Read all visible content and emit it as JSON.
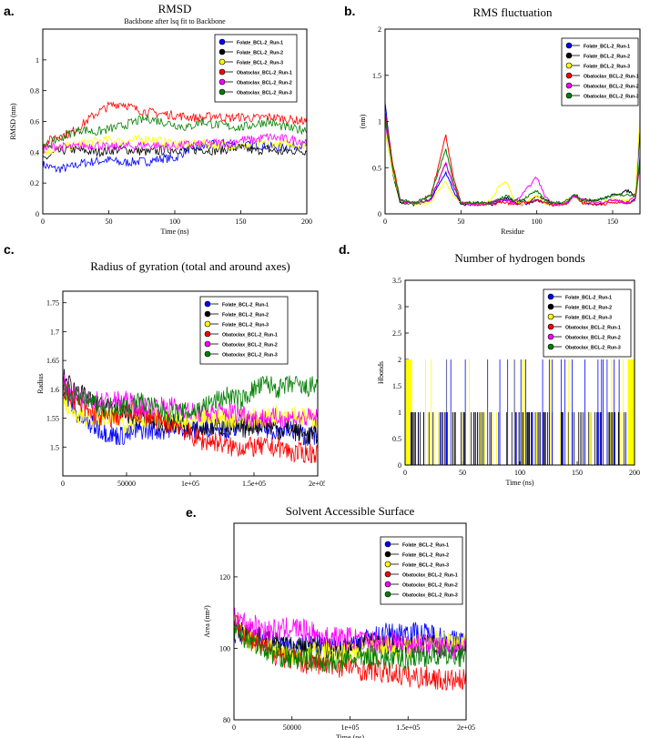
{
  "figure": {
    "panel_labels": [
      "a.",
      "b.",
      "c.",
      "d.",
      "e."
    ],
    "legend": [
      {
        "name": "Folate_BCL-2_Run-1",
        "color": "#0000ff"
      },
      {
        "name": "Folate_BCL-2_Run-2",
        "color": "#000000"
      },
      {
        "name": "Folate_BCL-2_Run-3",
        "color": "#ffff00"
      },
      {
        "name": "Obatoclax_BCL-2_Run-1",
        "color": "#ff0000"
      },
      {
        "name": "Obatoclax_BCL-2_Run-2",
        "color": "#ff00ff"
      },
      {
        "name": "Obatoclax_BCL-2_Run-3",
        "color": "#008000"
      }
    ]
  },
  "chart_data": [
    {
      "type": "line",
      "title": "RMSD",
      "subtitle": "Backbone after lsq fit to Backbone",
      "xlabel": "Time (ns)",
      "ylabel": "RMSD (nm)",
      "xlim": [
        0,
        200
      ],
      "ylim": [
        0,
        1.2
      ],
      "xticks": [
        "0",
        "50",
        "100",
        "150",
        "200"
      ],
      "yticks": [
        "0",
        "0.2",
        "0.4",
        "0.6",
        "0.8",
        "1"
      ],
      "x": [
        0,
        10,
        20,
        30,
        40,
        50,
        60,
        70,
        80,
        90,
        100,
        110,
        120,
        130,
        140,
        150,
        160,
        170,
        180,
        190,
        200
      ],
      "series": [
        {
          "name": "Folate_BCL-2_Run-1",
          "values": [
            0.32,
            0.29,
            0.3,
            0.33,
            0.34,
            0.35,
            0.33,
            0.34,
            0.34,
            0.36,
            0.36,
            0.42,
            0.43,
            0.45,
            0.46,
            0.44,
            0.45,
            0.44,
            0.43,
            0.44,
            0.45
          ]
        },
        {
          "name": "Folate_BCL-2_Run-2",
          "values": [
            0.35,
            0.4,
            0.42,
            0.41,
            0.4,
            0.41,
            0.42,
            0.41,
            0.4,
            0.41,
            0.42,
            0.41,
            0.42,
            0.41,
            0.42,
            0.43,
            0.41,
            0.42,
            0.4,
            0.41,
            0.41
          ]
        },
        {
          "name": "Folate_BCL-2_Run-3",
          "values": [
            0.4,
            0.42,
            0.44,
            0.46,
            0.47,
            0.48,
            0.47,
            0.48,
            0.49,
            0.47,
            0.46,
            0.45,
            0.46,
            0.45,
            0.45,
            0.44,
            0.45,
            0.46,
            0.45,
            0.45,
            0.45
          ]
        },
        {
          "name": "Obatoclax_BCL-2_Run-1",
          "values": [
            0.45,
            0.5,
            0.52,
            0.58,
            0.65,
            0.7,
            0.72,
            0.68,
            0.66,
            0.65,
            0.64,
            0.63,
            0.62,
            0.64,
            0.62,
            0.63,
            0.62,
            0.63,
            0.62,
            0.61,
            0.6
          ]
        },
        {
          "name": "Obatoclax_BCL-2_Run-2",
          "values": [
            0.42,
            0.44,
            0.43,
            0.44,
            0.45,
            0.43,
            0.44,
            0.44,
            0.45,
            0.44,
            0.44,
            0.45,
            0.45,
            0.46,
            0.46,
            0.48,
            0.48,
            0.5,
            0.49,
            0.48,
            0.47
          ]
        },
        {
          "name": "Obatoclax_BCL-2_Run-3",
          "values": [
            0.42,
            0.48,
            0.52,
            0.55,
            0.53,
            0.55,
            0.57,
            0.6,
            0.62,
            0.6,
            0.58,
            0.56,
            0.6,
            0.58,
            0.57,
            0.56,
            0.58,
            0.6,
            0.57,
            0.55,
            0.55
          ]
        }
      ],
      "legend_position": "top-right"
    },
    {
      "type": "line",
      "title": "RMS fluctuation",
      "xlabel": "Residue",
      "ylabel": "(nm)",
      "xlim": [
        0,
        168
      ],
      "ylim": [
        0,
        2
      ],
      "xticks": [
        "0",
        "50",
        "100",
        "150"
      ],
      "yticks": [
        "0",
        "0.5",
        "1",
        "1.5",
        "2"
      ],
      "x": [
        0,
        5,
        10,
        20,
        30,
        35,
        40,
        45,
        50,
        60,
        70,
        75,
        80,
        85,
        90,
        95,
        100,
        105,
        110,
        115,
        120,
        125,
        130,
        140,
        150,
        160,
        165,
        168
      ],
      "series": [
        {
          "name": "Folate_BCL-2_Run-1",
          "values": [
            1.2,
            0.5,
            0.15,
            0.1,
            0.15,
            0.3,
            0.45,
            0.25,
            0.1,
            0.1,
            0.1,
            0.12,
            0.15,
            0.12,
            0.1,
            0.12,
            0.15,
            0.12,
            0.1,
            0.1,
            0.12,
            0.2,
            0.12,
            0.1,
            0.15,
            0.12,
            0.15,
            0.9
          ]
        },
        {
          "name": "Folate_BCL-2_Run-2",
          "values": [
            1.1,
            0.45,
            0.12,
            0.1,
            0.15,
            0.35,
            0.55,
            0.3,
            0.1,
            0.12,
            0.12,
            0.15,
            0.18,
            0.12,
            0.15,
            0.12,
            0.2,
            0.15,
            0.12,
            0.1,
            0.12,
            0.22,
            0.15,
            0.15,
            0.2,
            0.25,
            0.2,
            1.0
          ]
        },
        {
          "name": "Folate_BCL-2_Run-3",
          "values": [
            0.9,
            0.45,
            0.15,
            0.1,
            0.12,
            0.25,
            0.35,
            0.2,
            0.12,
            0.1,
            0.15,
            0.3,
            0.35,
            0.15,
            0.1,
            0.15,
            0.2,
            0.12,
            0.1,
            0.1,
            0.15,
            0.2,
            0.12,
            0.12,
            0.15,
            0.15,
            0.2,
            1.05
          ]
        },
        {
          "name": "Obatoclax_BCL-2_Run-1",
          "values": [
            1.1,
            0.55,
            0.15,
            0.1,
            0.2,
            0.5,
            0.85,
            0.4,
            0.12,
            0.1,
            0.1,
            0.12,
            0.12,
            0.1,
            0.12,
            0.12,
            0.15,
            0.12,
            0.1,
            0.1,
            0.12,
            0.2,
            0.12,
            0.1,
            0.12,
            0.12,
            0.15,
            0.55
          ]
        },
        {
          "name": "Obatoclax_BCL-2_Run-2",
          "values": [
            1.0,
            0.5,
            0.15,
            0.12,
            0.15,
            0.35,
            0.55,
            0.3,
            0.12,
            0.1,
            0.12,
            0.15,
            0.15,
            0.12,
            0.2,
            0.3,
            0.4,
            0.2,
            0.12,
            0.1,
            0.12,
            0.2,
            0.15,
            0.12,
            0.15,
            0.12,
            0.2,
            0.5
          ]
        },
        {
          "name": "Obatoclax_BCL-2_Run-3",
          "values": [
            1.05,
            0.5,
            0.15,
            0.12,
            0.2,
            0.45,
            0.7,
            0.35,
            0.12,
            0.12,
            0.12,
            0.15,
            0.2,
            0.15,
            0.15,
            0.2,
            0.25,
            0.15,
            0.12,
            0.12,
            0.15,
            0.2,
            0.15,
            0.15,
            0.2,
            0.2,
            0.2,
            0.6
          ]
        }
      ],
      "legend_position": "top-right"
    },
    {
      "type": "line",
      "title": "Radius of gyration (total and around axes)",
      "xlabel": "Time (ps)",
      "ylabel": "Radius",
      "xlim": [
        0,
        200000
      ],
      "ylim": [
        1.45,
        1.77
      ],
      "xticks": [
        "0",
        "50000",
        "1e+05",
        "1.5e+05",
        "2e+05"
      ],
      "yticks": [
        "1.5",
        "1.55",
        "1.6",
        "1.65",
        "1.7",
        "1.75"
      ],
      "x": [
        0,
        10000,
        20000,
        30000,
        40000,
        50000,
        60000,
        70000,
        80000,
        90000,
        100000,
        110000,
        120000,
        130000,
        140000,
        150000,
        160000,
        170000,
        180000,
        190000,
        200000
      ],
      "series": [
        {
          "name": "Folate_BCL-2_Run-1",
          "values": [
            1.6,
            1.56,
            1.54,
            1.53,
            1.52,
            1.52,
            1.53,
            1.53,
            1.53,
            1.54,
            1.53,
            1.53,
            1.54,
            1.53,
            1.54,
            1.54,
            1.53,
            1.53,
            1.53,
            1.52,
            1.52
          ]
        },
        {
          "name": "Folate_BCL-2_Run-2",
          "values": [
            1.62,
            1.6,
            1.58,
            1.57,
            1.57,
            1.56,
            1.55,
            1.55,
            1.54,
            1.54,
            1.53,
            1.53,
            1.54,
            1.53,
            1.53,
            1.54,
            1.54,
            1.53,
            1.53,
            1.52,
            1.52
          ]
        },
        {
          "name": "Folate_BCL-2_Run-3",
          "values": [
            1.58,
            1.56,
            1.55,
            1.55,
            1.55,
            1.54,
            1.55,
            1.55,
            1.55,
            1.54,
            1.54,
            1.55,
            1.55,
            1.55,
            1.55,
            1.55,
            1.55,
            1.56,
            1.56,
            1.55,
            1.55
          ]
        },
        {
          "name": "Obatoclax_BCL-2_Run-1",
          "values": [
            1.6,
            1.58,
            1.56,
            1.55,
            1.55,
            1.56,
            1.56,
            1.55,
            1.54,
            1.54,
            1.52,
            1.51,
            1.51,
            1.5,
            1.5,
            1.5,
            1.5,
            1.5,
            1.49,
            1.49,
            1.49
          ]
        },
        {
          "name": "Obatoclax_BCL-2_Run-2",
          "values": [
            1.61,
            1.59,
            1.58,
            1.58,
            1.58,
            1.58,
            1.57,
            1.57,
            1.57,
            1.57,
            1.56,
            1.56,
            1.56,
            1.56,
            1.56,
            1.55,
            1.55,
            1.55,
            1.55,
            1.55,
            1.55
          ]
        },
        {
          "name": "Obatoclax_BCL-2_Run-3",
          "values": [
            1.6,
            1.59,
            1.58,
            1.57,
            1.57,
            1.57,
            1.58,
            1.57,
            1.56,
            1.56,
            1.56,
            1.57,
            1.58,
            1.59,
            1.58,
            1.6,
            1.61,
            1.6,
            1.61,
            1.6,
            1.61
          ]
        }
      ],
      "legend_position": "top-right"
    },
    {
      "type": "bar",
      "title": "Number of hydrogen bonds",
      "xlabel": "Time (ns)",
      "ylabel": "Hbonds",
      "xlim": [
        0,
        200
      ],
      "ylim": [
        0,
        3.5
      ],
      "xticks": [
        "0",
        "50",
        "100",
        "150",
        "200"
      ],
      "yticks": [
        "0",
        "0.5",
        "1",
        "1.5",
        "2",
        "2.5",
        "3",
        "3.5"
      ],
      "series": [
        {
          "name": "Folate_BCL-2_Run-1",
          "max_value": 2
        },
        {
          "name": "Folate_BCL-2_Run-2",
          "max_value": 1
        },
        {
          "name": "Folate_BCL-2_Run-3",
          "max_value": 2
        }
      ],
      "legend_position": "top-right"
    },
    {
      "type": "line",
      "title": "Solvent Accessible Surface",
      "xlabel": "Time (ps)",
      "ylabel": "Area (nm²)",
      "xlim": [
        0,
        200000
      ],
      "ylim": [
        80,
        135
      ],
      "xticks": [
        "0",
        "50000",
        "1e+05",
        "1.5e+05",
        "2e+05"
      ],
      "yticks": [
        "80",
        "100",
        "120"
      ],
      "x": [
        0,
        10000,
        20000,
        30000,
        40000,
        50000,
        60000,
        70000,
        80000,
        90000,
        100000,
        110000,
        120000,
        130000,
        140000,
        150000,
        160000,
        170000,
        180000,
        190000,
        200000
      ],
      "series": [
        {
          "name": "Folate_BCL-2_Run-1",
          "values": [
            103,
            104,
            103,
            102,
            101,
            100,
            101,
            101,
            100,
            100,
            101,
            102,
            103,
            104,
            104,
            105,
            104,
            104,
            103,
            102,
            102
          ]
        },
        {
          "name": "Folate_BCL-2_Run-2",
          "values": [
            106,
            104,
            103,
            102,
            101,
            100,
            100,
            101,
            100,
            100,
            101,
            101,
            102,
            101,
            101,
            100,
            100,
            101,
            100,
            100,
            101
          ]
        },
        {
          "name": "Folate_BCL-2_Run-3",
          "values": [
            105,
            103,
            102,
            100,
            99,
            98,
            98,
            99,
            99,
            98,
            99,
            100,
            100,
            101,
            100,
            100,
            101,
            102,
            102,
            102,
            102
          ]
        },
        {
          "name": "Obatoclax_BCL-2_Run-1",
          "values": [
            108,
            104,
            101,
            99,
            98,
            97,
            96,
            96,
            95,
            95,
            95,
            94,
            94,
            93,
            93,
            92,
            92,
            92,
            91,
            91,
            91
          ]
        },
        {
          "name": "Obatoclax_BCL-2_Run-2",
          "values": [
            110,
            107,
            106,
            105,
            105,
            106,
            105,
            104,
            103,
            103,
            103,
            102,
            102,
            102,
            102,
            101,
            101,
            101,
            100,
            100,
            100
          ]
        },
        {
          "name": "Obatoclax_BCL-2_Run-3",
          "values": [
            106,
            103,
            101,
            99,
            98,
            97,
            97,
            97,
            96,
            96,
            97,
            97,
            98,
            97,
            97,
            97,
            98,
            98,
            98,
            98,
            98
          ]
        }
      ],
      "legend_position": "top-right"
    }
  ]
}
